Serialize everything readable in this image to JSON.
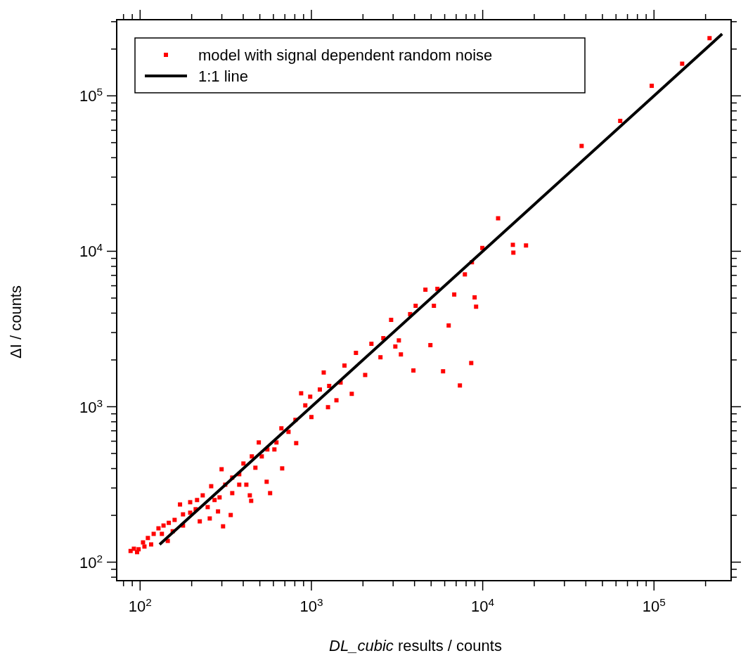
{
  "chart_data": {
    "type": "scatter",
    "xlabel": "DL_cubic results / counts",
    "ylabel": "ΔI / counts",
    "log": "xy",
    "grid": false,
    "legend": "top left",
    "xlim": [
      73,
      282000
    ],
    "ylim": [
      76,
      309000
    ],
    "xticks": [
      {
        "value": 80,
        "label": null
      },
      {
        "value": 90,
        "label": null
      },
      {
        "value": 100,
        "label": "10$^{2}$"
      },
      {
        "value": 200,
        "label": null
      },
      {
        "value": 300,
        "label": null
      },
      {
        "value": 400,
        "label": null
      },
      {
        "value": 500,
        "label": null
      },
      {
        "value": 600,
        "label": null
      },
      {
        "value": 700,
        "label": null
      },
      {
        "value": 800,
        "label": null
      },
      {
        "value": 900,
        "label": null
      },
      {
        "value": 1000,
        "label": "10$^{3}$"
      },
      {
        "value": 2000,
        "label": null
      },
      {
        "value": 3000,
        "label": null
      },
      {
        "value": 4000,
        "label": null
      },
      {
        "value": 5000,
        "label": null
      },
      {
        "value": 6000,
        "label": null
      },
      {
        "value": 7000,
        "label": null
      },
      {
        "value": 8000,
        "label": null
      },
      {
        "value": 9000,
        "label": null
      },
      {
        "value": 10000,
        "label": "10$^{4}$"
      },
      {
        "value": 20000,
        "label": null
      },
      {
        "value": 30000,
        "label": null
      },
      {
        "value": 40000,
        "label": null
      },
      {
        "value": 50000,
        "label": null
      },
      {
        "value": 60000,
        "label": null
      },
      {
        "value": 70000,
        "label": null
      },
      {
        "value": 80000,
        "label": null
      },
      {
        "value": 90000,
        "label": null
      },
      {
        "value": 100000,
        "label": "10$^{5}$"
      },
      {
        "value": 200000,
        "label": null
      }
    ],
    "yticks": [
      {
        "value": 80,
        "label": null
      },
      {
        "value": 90,
        "label": null
      },
      {
        "value": 100,
        "label": "10$^{2}$"
      },
      {
        "value": 200,
        "label": null
      },
      {
        "value": 300,
        "label": null
      },
      {
        "value": 400,
        "label": null
      },
      {
        "value": 500,
        "label": null
      },
      {
        "value": 600,
        "label": null
      },
      {
        "value": 700,
        "label": null
      },
      {
        "value": 800,
        "label": null
      },
      {
        "value": 900,
        "label": null
      },
      {
        "value": 1000,
        "label": "10$^{3}$"
      },
      {
        "value": 2000,
        "label": null
      },
      {
        "value": 3000,
        "label": null
      },
      {
        "value": 4000,
        "label": null
      },
      {
        "value": 5000,
        "label": null
      },
      {
        "value": 6000,
        "label": null
      },
      {
        "value": 7000,
        "label": null
      },
      {
        "value": 8000,
        "label": null
      },
      {
        "value": 9000,
        "label": null
      },
      {
        "value": 10000,
        "label": "10$^{4}$"
      },
      {
        "value": 20000,
        "label": null
      },
      {
        "value": 30000,
        "label": null
      },
      {
        "value": 40000,
        "label": null
      },
      {
        "value": 50000,
        "label": null
      },
      {
        "value": 60000,
        "label": null
      },
      {
        "value": 70000,
        "label": null
      },
      {
        "value": 80000,
        "label": null
      },
      {
        "value": 90000,
        "label": null
      },
      {
        "value": 100000,
        "label": "10$^{5}$"
      },
      {
        "value": 200000,
        "label": null
      },
      {
        "value": 300000,
        "label": null
      }
    ],
    "series": [
      {
        "name": "model with signal dependent random noise",
        "marker": "square",
        "color": "#ff0000",
        "x": [
          211000,
          146000,
          97000,
          63500,
          37800,
          15000,
          12300,
          15100,
          17900,
          9950,
          9150,
          8970,
          8650,
          7870,
          6820,
          6330,
          7360,
          5870,
          8570,
          5190,
          5440,
          4630,
          4060,
          4950,
          3940,
          3330,
          3240,
          3090,
          3770,
          2920,
          2630,
          2240,
          2530,
          2060,
          1820,
          1560,
          1480,
          1270,
          1180,
          1120,
          984,
          921,
          871,
          1000,
          807,
          815,
          668,
          675,
          625,
          574,
          548,
          553,
          513,
          449,
          471,
          401,
          379,
          417,
          437,
          445,
          338,
          305,
          345,
          314,
          299,
          291,
          272,
          260,
          248,
          232,
          215,
          196,
          178,
          171,
          159,
          147,
          137,
          128,
          120,
          111,
          104,
          98,
          92,
          88,
          106,
          116,
          134,
          155,
          178,
          211,
          255,
          285,
          223,
          1250,
          1720,
          1400,
          735,
          608,
          493,
          379,
          345,
          196,
          145,
          96
        ],
        "values": [
          235000,
          161000,
          116000,
          69000,
          47600,
          11000,
          16300,
          9800,
          10900,
          10500,
          4400,
          5050,
          8500,
          7100,
          5270,
          3330,
          1370,
          1690,
          1910,
          4460,
          5730,
          5660,
          4460,
          2490,
          1710,
          2170,
          2670,
          2440,
          3940,
          3620,
          2760,
          2540,
          2080,
          1600,
          2220,
          1840,
          1430,
          1360,
          1660,
          1290,
          1160,
          1020,
          1220,
          858,
          823,
          583,
          726,
          401,
          589,
          278,
          329,
          531,
          479,
          479,
          405,
          431,
          368,
          315,
          269,
          248,
          201,
          170,
          350,
          315,
          396,
          261,
          251,
          308,
          226,
          269,
          251,
          208,
          203,
          235,
          187,
          179,
          172,
          165,
          152,
          143,
          134,
          121,
          122,
          118,
          126,
          130,
          152,
          158,
          172,
          219,
          191,
          212,
          183,
          993,
          1210,
          1100,
          689,
          531,
          589,
          315,
          278,
          243,
          137,
          116
        ]
      },
      {
        "name": "1:1 line",
        "type": "line",
        "color": "#000000",
        "line_style": "solid",
        "x": [
          130,
          250000
        ],
        "values": [
          130,
          250000
        ]
      }
    ]
  }
}
